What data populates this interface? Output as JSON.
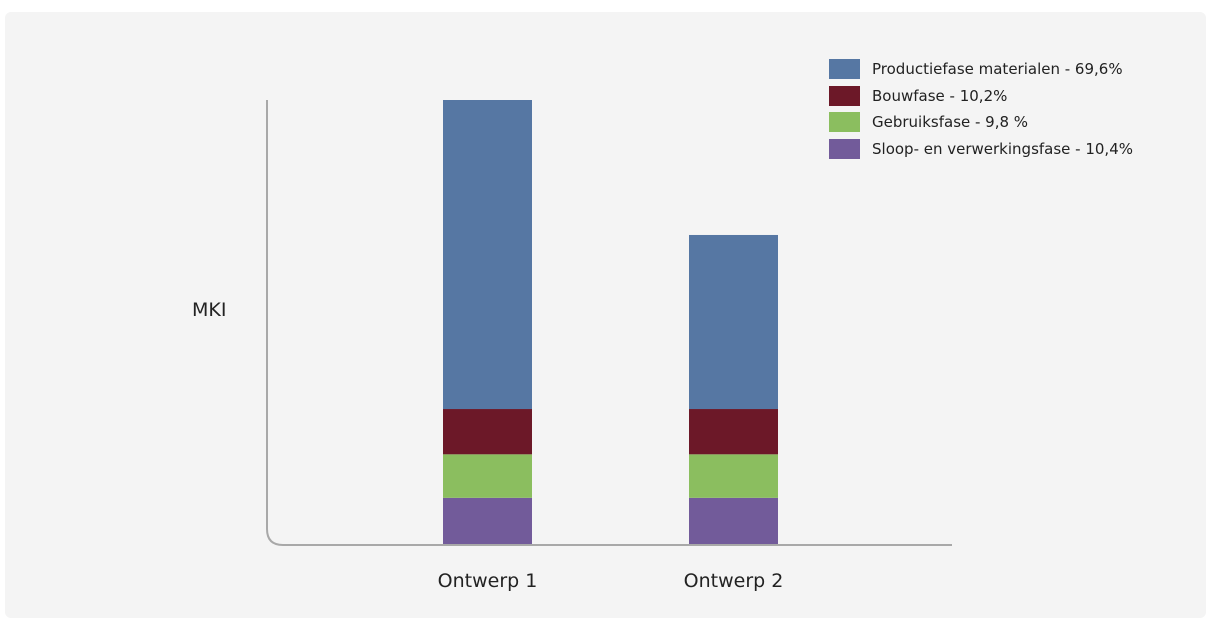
{
  "chart_data": {
    "type": "bar",
    "stacked": true,
    "ylabel": "MKI",
    "categories": [
      "Ontwerp 1",
      "Ontwerp 2"
    ],
    "series": [
      {
        "name": "Sloop- en verwerkingsfase - 10,4%",
        "color": "#725b9a",
        "values": [
          10.4,
          10.4
        ]
      },
      {
        "name": "Gebruiksfase - 9,8 %",
        "color": "#8bbe5f",
        "values": [
          9.8,
          9.8
        ]
      },
      {
        "name": "Bouwfase - 10,2%",
        "color": "#6c1828",
        "values": [
          10.2,
          10.2
        ]
      },
      {
        "name": "Productiefase materialen - 69,6%",
        "color": "#5677a3",
        "values": [
          69.6,
          39.2
        ]
      }
    ],
    "legend_order": [
      3,
      2,
      1,
      0
    ],
    "ylim": [
      0,
      100
    ],
    "grid": false,
    "legend_position": "top-right"
  }
}
